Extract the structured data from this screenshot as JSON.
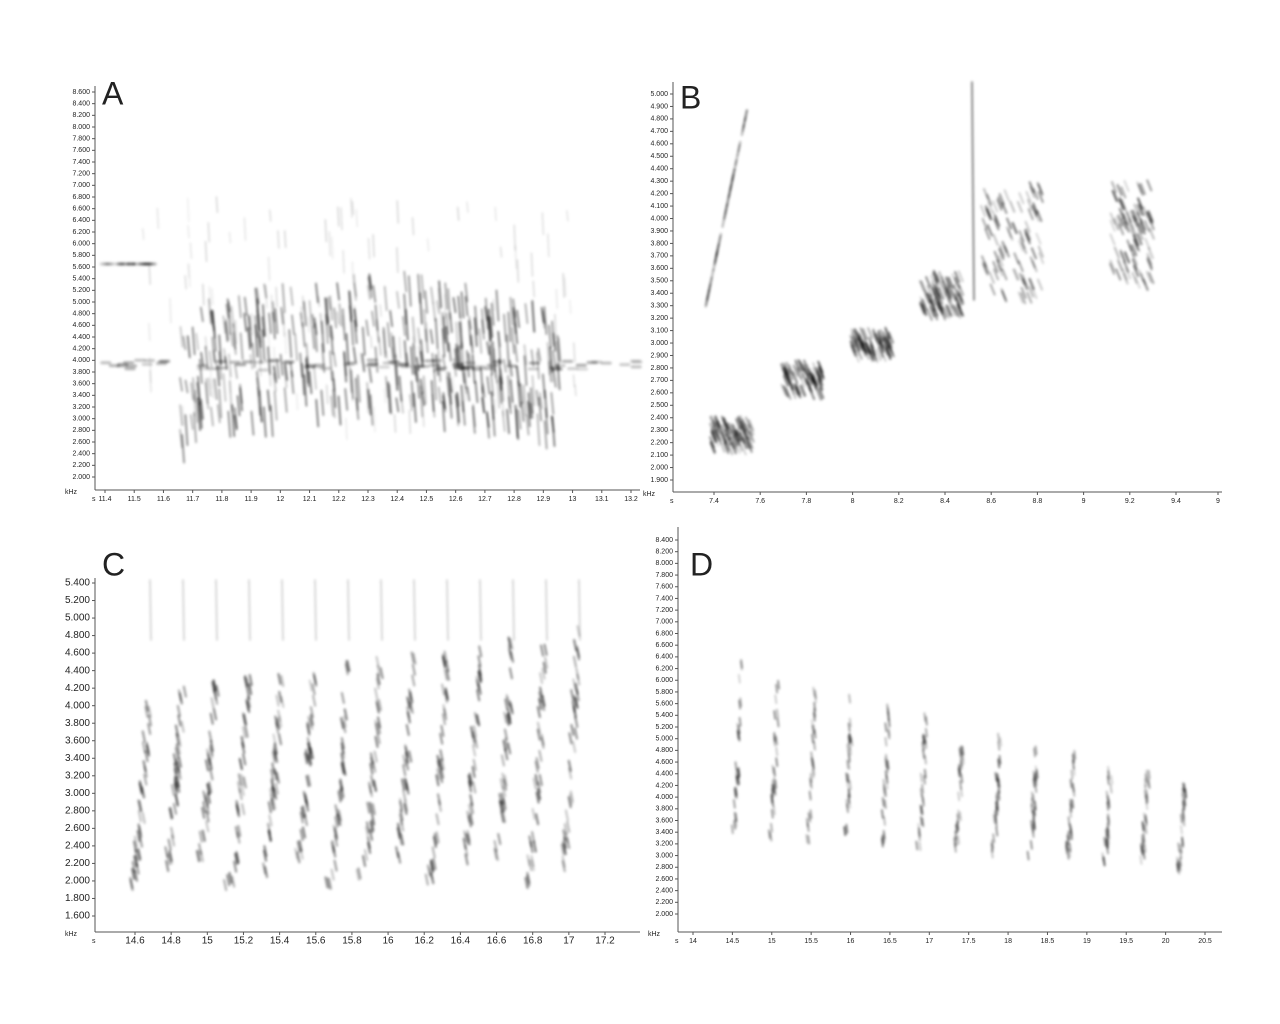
{
  "panels": [
    {
      "label": "A",
      "x_unit": "s",
      "y_unit": "kHz",
      "yticks": [
        "2.000",
        "2.200",
        "2.400",
        "2.600",
        "2.800",
        "3.000",
        "3.200",
        "3.400",
        "3.600",
        "3.800",
        "4.000",
        "4.200",
        "4.400",
        "4.600",
        "4.800",
        "5.000",
        "5.200",
        "5.400",
        "5.600",
        "5.800",
        "6.000",
        "6.200",
        "6.400",
        "6.600",
        "6.800",
        "7.000",
        "7.200",
        "7.400",
        "7.600",
        "7.800",
        "8.000",
        "8.200",
        "8.400",
        "8.600"
      ],
      "xticks": [
        "11.4",
        "11.5",
        "11.6",
        "11.7",
        "11.8",
        "11.9",
        "12",
        "12.1",
        "12.2",
        "12.3",
        "12.4",
        "12.5",
        "12.6",
        "12.7",
        "12.8",
        "12.9",
        "13",
        "13.1",
        "13.2"
      ]
    },
    {
      "label": "B",
      "x_unit": "s",
      "y_unit": "kHz",
      "yticks": [
        "1.900",
        "2.000",
        "2.100",
        "2.200",
        "2.300",
        "2.400",
        "2.500",
        "2.600",
        "2.700",
        "2.800",
        "2.900",
        "3.000",
        "3.100",
        "3.200",
        "3.300",
        "3.400",
        "3.500",
        "3.600",
        "3.700",
        "3.800",
        "3.900",
        "4.000",
        "4.100",
        "4.200",
        "4.300",
        "4.400",
        "4.500",
        "4.600",
        "4.700",
        "4.800",
        "4.900",
        "5.000"
      ],
      "xticks": [
        "7.4",
        "7.6",
        "7.8",
        "8",
        "8.2",
        "8.4",
        "8.6",
        "8.8",
        "9",
        "9.2",
        "9.4",
        "9"
      ]
    },
    {
      "label": "C",
      "x_unit": "s",
      "y_unit": "kHz",
      "yticks": [
        "1.600",
        "1.800",
        "2.000",
        "2.200",
        "2.400",
        "2.600",
        "2.800",
        "3.000",
        "3.200",
        "3.400",
        "3.600",
        "3.800",
        "4.000",
        "4.200",
        "4.400",
        "4.600",
        "4.800",
        "5.000",
        "5.200",
        "5.400"
      ],
      "xticks": [
        "14.6",
        "14.8",
        "15",
        "15.2",
        "15.4",
        "15.6",
        "15.8",
        "16",
        "16.2",
        "16.4",
        "16.6",
        "16.8",
        "17",
        "17.2"
      ]
    },
    {
      "label": "D",
      "x_unit": "s",
      "y_unit": "kHz",
      "yticks": [
        "2.000",
        "2.200",
        "2.400",
        "2.600",
        "2.800",
        "3.000",
        "3.200",
        "3.400",
        "3.600",
        "3.800",
        "4.000",
        "4.200",
        "4.400",
        "4.600",
        "4.800",
        "5.000",
        "5.200",
        "5.400",
        "5.600",
        "5.800",
        "6.000",
        "6.200",
        "6.400",
        "6.600",
        "6.800",
        "7.000",
        "7.200",
        "7.400",
        "7.600",
        "7.800",
        "8.000",
        "8.200",
        "8.400"
      ],
      "xticks": [
        "14",
        "14.5",
        "15",
        "15.5",
        "16",
        "16.5",
        "17",
        "17.5",
        "18",
        "18.5",
        "19",
        "19.5",
        "20",
        "20.5"
      ]
    }
  ]
}
